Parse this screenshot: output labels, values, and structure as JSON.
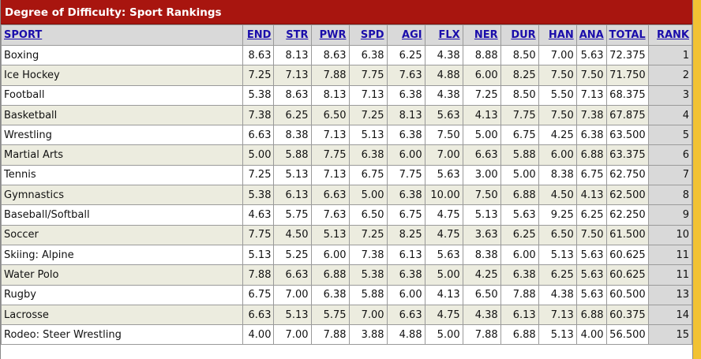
{
  "title": "Degree of Difficulty: Sport Rankings",
  "columns": [
    "SPORT",
    "END",
    "STR",
    "PWR",
    "SPD",
    "AGI",
    "FLX",
    "NER",
    "DUR",
    "HAN",
    "ANA",
    "TOTAL",
    "RANK"
  ],
  "rows": [
    [
      "Boxing",
      "8.63",
      "8.13",
      "8.63",
      "6.38",
      "6.25",
      "4.38",
      "8.88",
      "8.50",
      "7.00",
      "5.63",
      "72.375",
      "1"
    ],
    [
      "Ice Hockey",
      "7.25",
      "7.13",
      "7.88",
      "7.75",
      "7.63",
      "4.88",
      "6.00",
      "8.25",
      "7.50",
      "7.50",
      "71.750",
      "2"
    ],
    [
      "Football",
      "5.38",
      "8.63",
      "8.13",
      "7.13",
      "6.38",
      "4.38",
      "7.25",
      "8.50",
      "5.50",
      "7.13",
      "68.375",
      "3"
    ],
    [
      "Basketball",
      "7.38",
      "6.25",
      "6.50",
      "7.25",
      "8.13",
      "5.63",
      "4.13",
      "7.75",
      "7.50",
      "7.38",
      "67.875",
      "4"
    ],
    [
      "Wrestling",
      "6.63",
      "8.38",
      "7.13",
      "5.13",
      "6.38",
      "7.50",
      "5.00",
      "6.75",
      "4.25",
      "6.38",
      "63.500",
      "5"
    ],
    [
      "Martial Arts",
      "5.00",
      "5.88",
      "7.75",
      "6.38",
      "6.00",
      "7.00",
      "6.63",
      "5.88",
      "6.00",
      "6.88",
      "63.375",
      "6"
    ],
    [
      "Tennis",
      "7.25",
      "5.13",
      "7.13",
      "6.75",
      "7.75",
      "5.63",
      "3.00",
      "5.00",
      "8.38",
      "6.75",
      "62.750",
      "7"
    ],
    [
      "Gymnastics",
      "5.38",
      "6.13",
      "6.63",
      "5.00",
      "6.38",
      "10.00",
      "7.50",
      "6.88",
      "4.50",
      "4.13",
      "62.500",
      "8"
    ],
    [
      "Baseball/Softball",
      "4.63",
      "5.75",
      "7.63",
      "6.50",
      "6.75",
      "4.75",
      "5.13",
      "5.63",
      "9.25",
      "6.25",
      "62.250",
      "9"
    ],
    [
      "Soccer",
      "7.75",
      "4.50",
      "5.13",
      "7.25",
      "8.25",
      "4.75",
      "3.63",
      "6.25",
      "6.50",
      "7.50",
      "61.500",
      "10"
    ],
    [
      "Skiing: Alpine",
      "5.13",
      "5.25",
      "6.00",
      "7.38",
      "6.13",
      "5.63",
      "8.38",
      "6.00",
      "5.13",
      "5.63",
      "60.625",
      "11"
    ],
    [
      "Water Polo",
      "7.88",
      "6.63",
      "6.88",
      "5.38",
      "6.38",
      "5.00",
      "4.25",
      "6.38",
      "6.25",
      "5.63",
      "60.625",
      "11"
    ],
    [
      "Rugby",
      "6.75",
      "7.00",
      "6.38",
      "5.88",
      "6.00",
      "4.13",
      "6.50",
      "7.88",
      "4.38",
      "5.63",
      "60.500",
      "13"
    ],
    [
      "Lacrosse",
      "6.63",
      "5.13",
      "5.75",
      "7.00",
      "6.63",
      "4.75",
      "4.38",
      "6.13",
      "7.13",
      "6.88",
      "60.375",
      "14"
    ],
    [
      "Rodeo: Steer Wrestling",
      "4.00",
      "7.00",
      "7.88",
      "3.88",
      "4.88",
      "5.00",
      "7.88",
      "6.88",
      "5.13",
      "4.00",
      "56.500",
      "15"
    ]
  ]
}
